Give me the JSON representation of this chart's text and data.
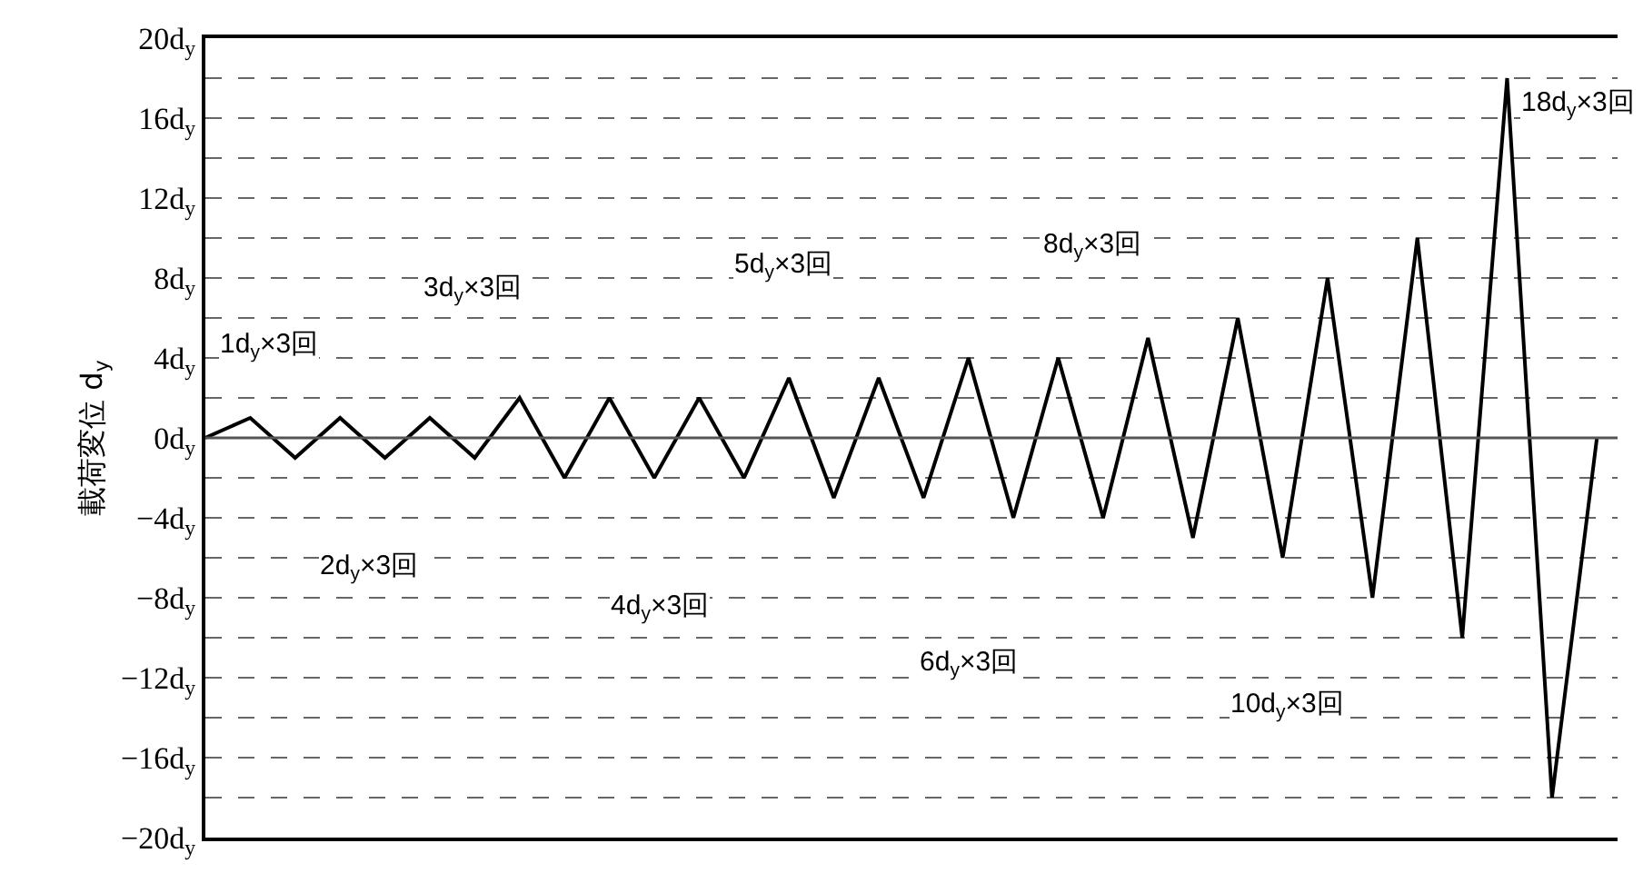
{
  "chart_data": {
    "type": "line",
    "ylabel": "載荷変位 d$_{y}$",
    "categories": [
      null,
      null,
      null,
      null,
      null,
      null,
      null,
      null,
      null,
      null,
      null,
      null,
      null,
      null,
      null,
      null,
      null,
      null,
      null,
      null,
      null,
      null,
      null,
      null,
      null,
      null,
      null,
      null,
      null,
      null,
      null,
      null
    ],
    "series": [
      {
        "color": "#000000",
        "values": [
          0,
          1,
          -1,
          1,
          -1,
          1,
          -1,
          2,
          -2,
          2,
          -2,
          2,
          -2,
          3,
          -3,
          3,
          -3,
          4,
          -4,
          4,
          -4,
          5,
          -5,
          6,
          -6,
          8,
          -8,
          10,
          -10,
          18,
          -18,
          0
        ]
      }
    ],
    "ylim": [
      -20,
      20
    ],
    "yticks": [
      {
        "value": -20,
        "label": "−20d$_{y}$"
      },
      {
        "value": -18,
        "label": null
      },
      {
        "value": -16,
        "label": "−16d$_{y}$"
      },
      {
        "value": -14,
        "label": null
      },
      {
        "value": -12,
        "label": "−12d$_{y}$"
      },
      {
        "value": -10,
        "label": null
      },
      {
        "value": -8,
        "label": "−8d$_{y}$"
      },
      {
        "value": -6,
        "label": null
      },
      {
        "value": -4,
        "label": "−4d$_{y}$"
      },
      {
        "value": -2,
        "label": null
      },
      {
        "value": 0,
        "label": "0d$_{y}$"
      },
      {
        "value": 2,
        "label": null
      },
      {
        "value": 4,
        "label": "4d$_{y}$"
      },
      {
        "value": 6,
        "label": null
      },
      {
        "value": 8,
        "label": "8d$_{y}$"
      },
      {
        "value": 10,
        "label": null
      },
      {
        "value": 12,
        "label": "12d$_{y}$"
      },
      {
        "value": 14,
        "label": null
      },
      {
        "value": 16,
        "label": "16d$_{y}$"
      },
      {
        "value": 18,
        "label": null
      },
      {
        "value": 20,
        "label": "20d$_{y}$"
      }
    ],
    "grid": "y",
    "ref_lines": [
      {
        "axis": "y",
        "value": 0,
        "color": "#555555",
        "line_style": "solid"
      }
    ],
    "annotations": [
      "1d$_{y}$×3回",
      "2d$_{y}$×3回",
      "3d$_{y}$×3回",
      "4d$_{y}$×3回",
      "5d$_{y}$×3回",
      "6d$_{y}$×3回",
      "8d$_{y}$×3回",
      "10d$_{y}$×3回",
      "18d$_{y}$×3回"
    ],
    "marker": "none",
    "line_style": "solid"
  }
}
